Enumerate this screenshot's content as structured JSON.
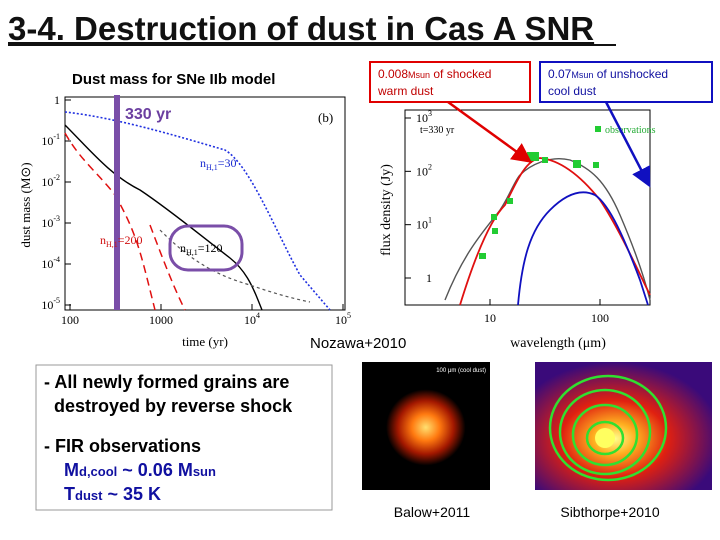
{
  "title": "3-4. Destruction of dust in Cas A SNR",
  "left_plot": {
    "caption": "Dust mass for SNe IIb model",
    "panel": "(b)",
    "age": "330 yr",
    "y_label": "dust mass (M⊙)",
    "x_label": "time (yr)",
    "yticks": [
      {
        "base": "1"
      },
      {
        "base": "10",
        "exp": "-1"
      },
      {
        "base": "10",
        "exp": "-2"
      },
      {
        "base": "10",
        "exp": "-3"
      },
      {
        "base": "10",
        "exp": "-4"
      },
      {
        "base": "10",
        "exp": "-5"
      }
    ],
    "xticks": [
      {
        "base": "100"
      },
      {
        "base": "1000"
      },
      {
        "base": "10",
        "exp": "4"
      },
      {
        "base": "10",
        "exp": "5"
      }
    ],
    "curve_labels": [
      {
        "base": "n",
        "sub": "H,1",
        "rest": "=30"
      },
      {
        "base": "n",
        "sub": "H,1",
        "rest": "=200"
      },
      {
        "base": "n",
        "sub": "H,1",
        "rest": "=120"
      }
    ]
  },
  "right_plot": {
    "y_label": "flux density (Jy)",
    "x_label": "wavelength (μm)",
    "legend_time": "t=330 yr",
    "legend_obs": "observations",
    "yticks": [
      {
        "base": "10",
        "exp": "3"
      },
      {
        "base": "10",
        "exp": "2"
      },
      {
        "base": "10",
        "exp": "1"
      },
      {
        "base": "1"
      }
    ],
    "xticks": [
      "10",
      "100"
    ]
  },
  "boxes": {
    "shocked": {
      "value": "0.008",
      "unit": "Msun",
      "line1": " of shocked",
      "line2": "warm dust"
    },
    "unshocked": {
      "value": "0.07",
      "unit": "Msun",
      "line1": " of unshocked",
      "line2": "cool dust"
    }
  },
  "credit": "Nozawa+2010",
  "bullets": {
    "first": [
      "- All newly formed grains are",
      "destroyed by reverse shock"
    ],
    "fir_head": "- FIR observations",
    "fir_line1": [
      "M",
      "d,cool",
      " ~ 0.06 M",
      "sun"
    ],
    "fir_line2": [
      "T",
      "dust",
      " ~ 35 K"
    ]
  },
  "images": [
    {
      "label": "100 μm (cool dust)",
      "caption": "Balow+2011"
    },
    {
      "caption": "Sibthorpe+2010"
    }
  ]
}
